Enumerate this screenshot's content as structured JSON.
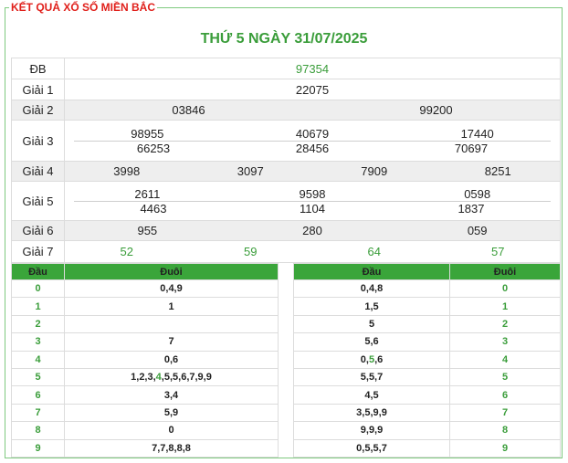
{
  "header": {
    "title": "KẾT QUẢ XỔ SỐ MIỀN BẮC",
    "date_title": "THỨ 5 NGÀY 31/07/2025"
  },
  "prizes": [
    {
      "label": "ĐB",
      "numbers": [
        "97354"
      ],
      "color": "#3a9d3a"
    },
    {
      "label": "Giải 1",
      "numbers": [
        "22075"
      ]
    },
    {
      "label": "Giải 2",
      "numbers": [
        "03846",
        "99200"
      ]
    },
    {
      "label": "Giải 3",
      "numbers": [
        "98955",
        "40679",
        "17440",
        "66253",
        "28456",
        "70697"
      ]
    },
    {
      "label": "Giải 4",
      "numbers": [
        "3998",
        "3097",
        "7909",
        "8251"
      ]
    },
    {
      "label": "Giải 5",
      "numbers": [
        "2611",
        "9598",
        "0598",
        "4463",
        "1104",
        "1837"
      ]
    },
    {
      "label": "Giải 6",
      "numbers": [
        "955",
        "280",
        "059"
      ]
    },
    {
      "label": "Giải 7",
      "numbers": [
        "52",
        "59",
        "64",
        "57"
      ],
      "color": "#3a9d3a"
    }
  ],
  "left_table": {
    "headers": [
      "Đầu",
      "Đuôi"
    ],
    "rows": [
      [
        "0",
        "0,4,9"
      ],
      [
        "1",
        "1"
      ],
      [
        "2",
        ""
      ],
      [
        "3",
        "7"
      ],
      [
        "4",
        "0,6"
      ],
      [
        "5",
        [
          {
            "text": "1,2,3,"
          },
          {
            "text": "4",
            "color": "#3a9d3a"
          },
          {
            "text": ",5,5,6,7,9,9"
          }
        ]
      ],
      [
        "6",
        "3,4"
      ],
      [
        "7",
        "5,9"
      ],
      [
        "8",
        "0"
      ],
      [
        "9",
        "7,7,8,8,8"
      ]
    ]
  },
  "right_table": {
    "headers": [
      "Đầu",
      "Đuôi"
    ],
    "rows": [
      [
        "0,4,8",
        "0"
      ],
      [
        "1,5",
        "1"
      ],
      [
        "5",
        "2"
      ],
      [
        "5,6",
        "3"
      ],
      [
        [
          {
            "text": "0,"
          },
          {
            "text": "5",
            "color": "#3a9d3a"
          },
          {
            "text": ",6"
          }
        ],
        "4"
      ],
      [
        "5,5,7",
        "5"
      ],
      [
        "4,5",
        "6"
      ],
      [
        "3,5,9,9",
        "7"
      ],
      [
        "9,9,9",
        "8"
      ],
      [
        "0,5,5,7",
        "9"
      ]
    ]
  }
}
